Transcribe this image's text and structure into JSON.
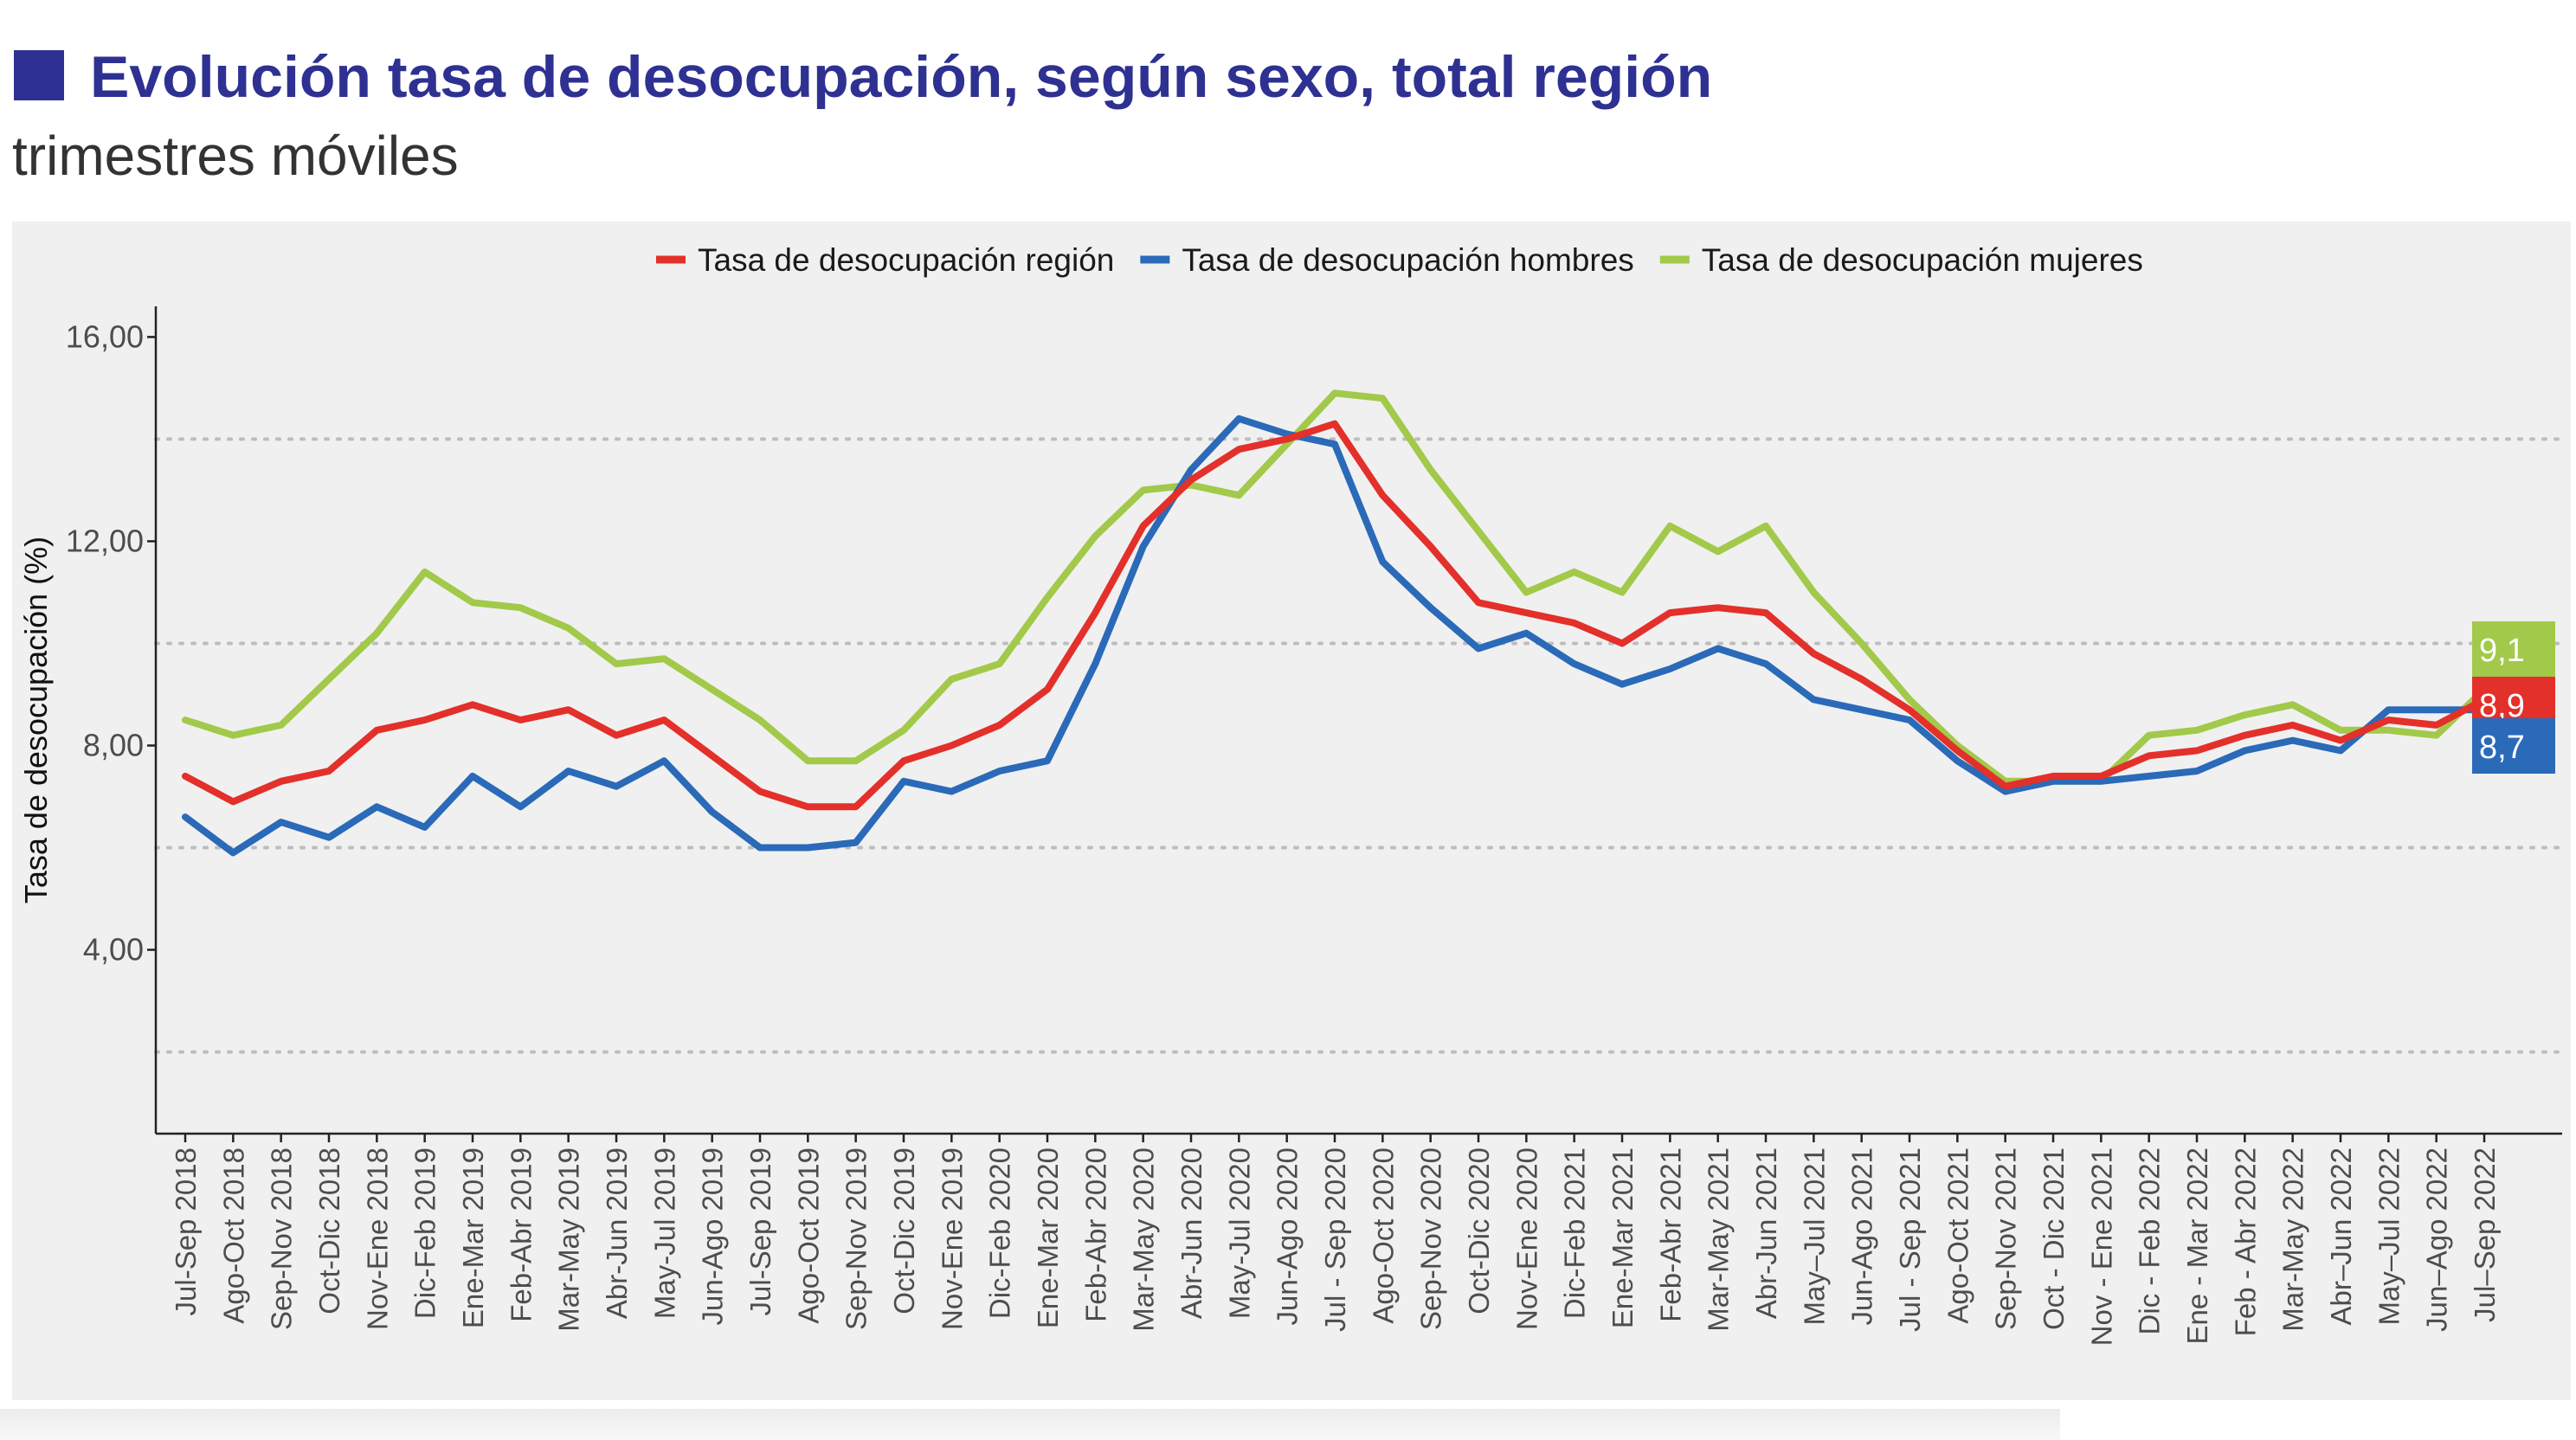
{
  "header": {
    "title": "Evolución tasa de desocupación, según sexo, total región",
    "subtitle": "trimestres móviles"
  },
  "colors": {
    "title": "#2e3191",
    "panel": "#f0f0f0",
    "region": "#e3302a",
    "hombres": "#2a6ab8",
    "mujeres": "#a2c94a",
    "grid": "#bdbdbd",
    "axis_text": "#4d4d4d"
  },
  "icons": {
    "title_marker": "square-marker-icon"
  },
  "chart_data": {
    "type": "line",
    "title": "Evolución tasa de desocupación, según sexo, total región",
    "subtitle": "trimestres móviles",
    "ylabel": "Tasa de desocupación (%)",
    "xlabel": "",
    "ylim": [
      0.4,
      16.6
    ],
    "yticks": [
      4,
      8,
      12,
      16
    ],
    "ytick_labels": [
      "4,00",
      "8,00",
      "12,00",
      "16,00"
    ],
    "grid_dotted_at": [
      2,
      6,
      10,
      14
    ],
    "legend_position": "top",
    "categories": [
      "Jul-Sep 2018",
      "Ago-Oct 2018",
      "Sep-Nov 2018",
      "Oct-Dic 2018",
      "Nov-Ene 2018",
      "Dic-Feb 2019",
      "Ene-Mar 2019",
      "Feb-Abr 2019",
      "Mar-May 2019",
      "Abr-Jun 2019",
      "May-Jul 2019",
      "Jun-Ago 2019",
      "Jul-Sep 2019",
      "Ago-Oct 2019",
      "Sep-Nov 2019",
      "Oct-Dic 2019",
      "Nov-Ene 2019",
      "Dic-Feb 2020",
      "Ene-Mar 2020",
      "Feb-Abr 2020",
      "Mar-May 2020",
      "Abr-Jun 2020",
      "May-Jul 2020",
      "Jun-Ago 2020",
      "Jul - Sep 2020",
      "Ago-Oct 2020",
      "Sep-Nov 2020",
      "Oct-Dic 2020",
      "Nov-Ene 2020",
      "Dic-Feb 2021",
      "Ene-Mar 2021",
      "Feb-Abr 2021",
      "Mar-May 2021",
      "Abr-Jun 2021",
      "May–Jul 2021",
      "Jun-Ago 2021",
      "Jul - Sep 2021",
      "Ago-Oct 2021",
      "Sep-Nov 2021",
      "Oct - Dic 2021",
      "Nov - Ene 2021",
      "Dic - Feb 2022",
      "Ene - Mar 2022",
      "Feb - Abr 2022",
      "Mar-May 2022",
      "Abr–Jun 2022",
      "May–Jul 2022",
      "Jun–Ago 2022",
      "Jul–Sep 2022"
    ],
    "series": [
      {
        "key": "region",
        "name": "Tasa de desocupación región",
        "color": "#e3302a",
        "values": [
          7.4,
          6.9,
          7.3,
          7.5,
          8.3,
          8.5,
          8.8,
          8.5,
          8.7,
          8.2,
          8.5,
          7.8,
          7.1,
          6.8,
          6.8,
          7.7,
          8.0,
          8.4,
          9.1,
          10.6,
          12.3,
          13.2,
          13.8,
          14.0,
          14.3,
          12.9,
          11.9,
          10.8,
          10.6,
          10.4,
          10.0,
          10.6,
          10.7,
          10.6,
          9.8,
          9.3,
          8.7,
          7.9,
          7.2,
          7.4,
          7.4,
          7.8,
          7.9,
          8.2,
          8.4,
          8.1,
          8.5,
          8.4,
          8.9
        ]
      },
      {
        "key": "hombres",
        "name": "Tasa de desocupación hombres",
        "color": "#2a6ab8",
        "values": [
          6.6,
          5.9,
          6.5,
          6.2,
          6.8,
          6.4,
          7.4,
          6.8,
          7.5,
          7.2,
          7.7,
          6.7,
          6.0,
          6.0,
          6.1,
          7.3,
          7.1,
          7.5,
          7.7,
          9.6,
          11.9,
          13.4,
          14.4,
          14.1,
          13.9,
          11.6,
          10.7,
          9.9,
          10.2,
          9.6,
          9.2,
          9.5,
          9.9,
          9.6,
          8.9,
          8.7,
          8.5,
          7.7,
          7.1,
          7.3,
          7.3,
          7.4,
          7.5,
          7.9,
          8.1,
          7.9,
          8.7,
          8.7,
          8.7
        ]
      },
      {
        "key": "mujeres",
        "name": "Tasa de desocupación mujeres",
        "color": "#a2c94a",
        "values": [
          8.5,
          8.2,
          8.4,
          9.3,
          10.2,
          11.4,
          10.8,
          10.7,
          10.3,
          9.6,
          9.7,
          9.1,
          8.5,
          7.7,
          7.7,
          8.3,
          9.3,
          9.6,
          10.9,
          12.1,
          13.0,
          13.1,
          12.9,
          13.9,
          14.9,
          14.8,
          13.4,
          12.2,
          11.0,
          11.4,
          11.0,
          12.3,
          11.8,
          12.3,
          11.0,
          10.0,
          8.9,
          8.0,
          7.3,
          7.3,
          7.3,
          8.2,
          8.3,
          8.6,
          8.8,
          8.3,
          8.3,
          8.2,
          9.1
        ]
      }
    ],
    "end_labels": [
      {
        "key": "mujeres",
        "text": "9,1",
        "color": "#a2c94a"
      },
      {
        "key": "region",
        "text": "8,9",
        "color": "#e3302a"
      },
      {
        "key": "hombres",
        "text": "8,7",
        "color": "#2a6ab8"
      }
    ]
  }
}
